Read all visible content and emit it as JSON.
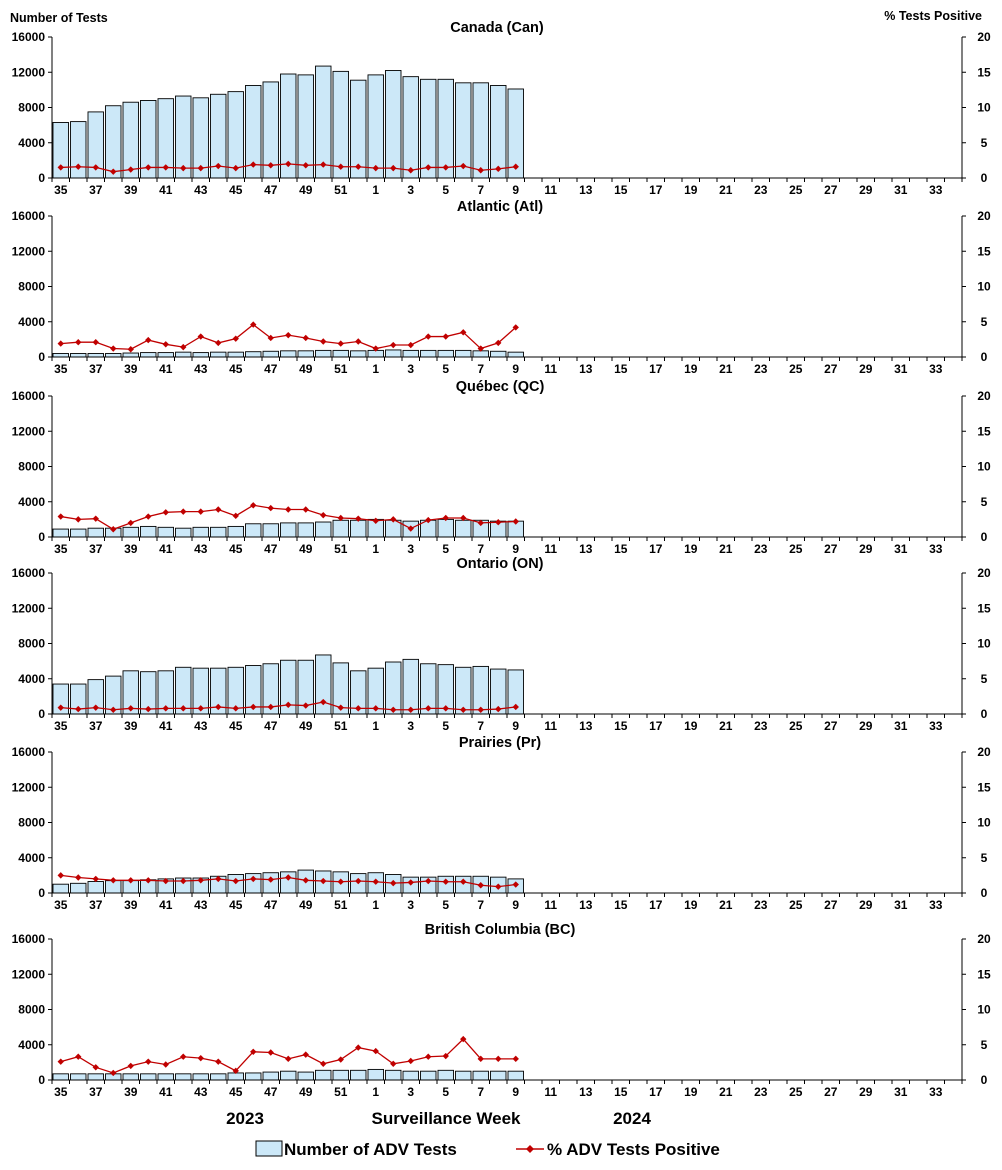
{
  "left_axis_title": "Number of Tests",
  "right_axis_title": "%  Tests Positive",
  "x_axis": {
    "year_left": "2023",
    "title": "Surveillance Week",
    "year_right": "2024",
    "weeks": [
      35,
      36,
      37,
      38,
      39,
      40,
      41,
      42,
      43,
      44,
      45,
      46,
      47,
      48,
      49,
      50,
      51,
      52,
      1,
      2,
      3,
      4,
      5,
      6,
      7,
      8,
      9,
      10,
      11,
      12,
      13,
      14,
      15,
      16,
      17,
      18,
      19,
      20,
      21,
      22,
      23,
      24,
      25,
      26,
      27,
      28,
      29,
      30,
      31,
      32,
      33,
      34
    ],
    "tick_labels": [
      "35",
      "37",
      "39",
      "41",
      "43",
      "45",
      "47",
      "49",
      "51",
      "1",
      "3",
      "5",
      "7",
      "9",
      "11",
      "13",
      "15",
      "17",
      "19",
      "21",
      "23",
      "25",
      "27",
      "29",
      "31",
      "33"
    ]
  },
  "legend": {
    "bars_label": "Number of ADV Tests",
    "line_label": "% ADV Tests Positive"
  },
  "colors": {
    "bar_fill": "#cce8f8",
    "bar_stroke": "#000000",
    "line": "#c00000"
  },
  "chart_data": [
    {
      "type": "bar+line",
      "title": "Canada (Can)",
      "ylim_left": [
        0,
        16000
      ],
      "yticks_left": [
        0,
        4000,
        8000,
        12000,
        16000
      ],
      "ylim_right": [
        0,
        20
      ],
      "yticks_right": [
        0,
        5,
        10,
        15,
        20
      ],
      "tests": [
        6300,
        6400,
        7500,
        8200,
        8600,
        8800,
        9000,
        9300,
        9100,
        9500,
        9800,
        10500,
        10900,
        11800,
        11700,
        12700,
        12100,
        11100,
        11700,
        12200,
        11500,
        11200,
        11200,
        10800,
        10800,
        10500,
        10100
      ],
      "pct_positive": [
        1.5,
        1.6,
        1.5,
        0.9,
        1.2,
        1.5,
        1.5,
        1.4,
        1.4,
        1.7,
        1.4,
        1.9,
        1.8,
        2.0,
        1.8,
        1.9,
        1.6,
        1.6,
        1.4,
        1.4,
        1.1,
        1.5,
        1.5,
        1.7,
        1.1,
        1.3,
        1.6
      ]
    },
    {
      "type": "bar+line",
      "title": "Atlantic (Atl)",
      "ylim_left": [
        0,
        16000
      ],
      "yticks_left": [
        0,
        4000,
        8000,
        12000,
        16000
      ],
      "ylim_right": [
        0,
        20
      ],
      "yticks_right": [
        0,
        5,
        10,
        15,
        20
      ],
      "tests": [
        400,
        400,
        400,
        400,
        450,
        500,
        500,
        550,
        500,
        550,
        550,
        600,
        650,
        700,
        700,
        750,
        750,
        700,
        750,
        800,
        750,
        750,
        750,
        750,
        700,
        650,
        550
      ],
      "pct_positive": [
        1.9,
        2.1,
        2.1,
        1.2,
        1.1,
        2.4,
        1.8,
        1.4,
        2.9,
        2.0,
        2.6,
        4.6,
        2.7,
        3.1,
        2.7,
        2.2,
        1.9,
        2.2,
        1.2,
        1.7,
        1.7,
        2.9,
        2.9,
        3.5,
        1.2,
        2.0,
        4.2
      ]
    },
    {
      "type": "bar+line",
      "title": "Québec (QC)",
      "ylim_left": [
        0,
        16000
      ],
      "yticks_left": [
        0,
        4000,
        8000,
        12000,
        16000
      ],
      "ylim_right": [
        0,
        20
      ],
      "yticks_right": [
        0,
        5,
        10,
        15,
        20
      ],
      "tests": [
        900,
        900,
        1000,
        1000,
        1100,
        1200,
        1100,
        1000,
        1100,
        1100,
        1200,
        1500,
        1500,
        1600,
        1600,
        1700,
        1900,
        1900,
        2000,
        1900,
        1800,
        1900,
        2000,
        1900,
        1900,
        1800,
        1800
      ],
      "pct_positive": [
        2.9,
        2.5,
        2.6,
        1.1,
        2.0,
        2.9,
        3.5,
        3.6,
        3.6,
        3.9,
        3.0,
        4.5,
        4.1,
        3.9,
        3.9,
        3.1,
        2.7,
        2.6,
        2.3,
        2.5,
        1.2,
        2.4,
        2.7,
        2.7,
        2.0,
        2.1,
        2.2
      ]
    },
    {
      "type": "bar+line",
      "title": "Ontario (ON)",
      "ylim_left": [
        0,
        16000
      ],
      "yticks_left": [
        0,
        4000,
        8000,
        12000,
        16000
      ],
      "ylim_right": [
        0,
        20
      ],
      "yticks_right": [
        0,
        5,
        10,
        15,
        20
      ],
      "tests": [
        3400,
        3400,
        3900,
        4300,
        4900,
        4800,
        4900,
        5300,
        5200,
        5200,
        5300,
        5500,
        5700,
        6100,
        6100,
        6700,
        5800,
        4900,
        5200,
        5900,
        6200,
        5700,
        5600,
        5300,
        5400,
        5100,
        5000
      ],
      "pct_positive": [
        0.9,
        0.7,
        0.9,
        0.6,
        0.8,
        0.7,
        0.8,
        0.8,
        0.8,
        1.0,
        0.8,
        1.0,
        1.0,
        1.3,
        1.2,
        1.7,
        0.9,
        0.8,
        0.8,
        0.6,
        0.6,
        0.8,
        0.8,
        0.6,
        0.6,
        0.7,
        1.0
      ]
    },
    {
      "type": "bar+line",
      "title": "Prairies (Pr)",
      "ylim_left": [
        0,
        16000
      ],
      "yticks_left": [
        0,
        4000,
        8000,
        12000,
        16000
      ],
      "ylim_right": [
        0,
        20
      ],
      "yticks_right": [
        0,
        5,
        10,
        15,
        20
      ],
      "tests": [
        1000,
        1100,
        1300,
        1400,
        1400,
        1500,
        1600,
        1700,
        1700,
        1900,
        2100,
        2200,
        2300,
        2400,
        2600,
        2500,
        2400,
        2200,
        2300,
        2100,
        1800,
        1800,
        1900,
        1900,
        1900,
        1800,
        1600
      ],
      "pct_positive": [
        2.5,
        2.2,
        2.0,
        1.8,
        1.8,
        1.8,
        1.7,
        1.7,
        1.8,
        2.0,
        1.7,
        2.0,
        1.9,
        2.2,
        1.8,
        1.7,
        1.6,
        1.7,
        1.6,
        1.4,
        1.5,
        1.7,
        1.6,
        1.6,
        1.1,
        0.9,
        1.2
      ]
    },
    {
      "type": "bar+line",
      "title": "British Columbia (BC)",
      "ylim_left": [
        0,
        16000
      ],
      "yticks_left": [
        0,
        4000,
        8000,
        12000,
        16000
      ],
      "ylim_right": [
        0,
        20
      ],
      "yticks_right": [
        0,
        5,
        10,
        15,
        20
      ],
      "tests": [
        700,
        700,
        700,
        700,
        700,
        700,
        700,
        700,
        700,
        700,
        800,
        800,
        900,
        1000,
        900,
        1100,
        1100,
        1100,
        1200,
        1100,
        1000,
        1000,
        1100,
        1000,
        1000,
        1000,
        1000
      ],
      "pct_positive": [
        2.6,
        3.3,
        1.8,
        1.0,
        2.0,
        2.6,
        2.2,
        3.3,
        3.1,
        2.6,
        1.3,
        4.0,
        3.9,
        3.0,
        3.6,
        2.3,
        2.9,
        4.6,
        4.1,
        2.3,
        2.7,
        3.3,
        3.4,
        5.8,
        3.0,
        3.0,
        3.0
      ]
    }
  ]
}
